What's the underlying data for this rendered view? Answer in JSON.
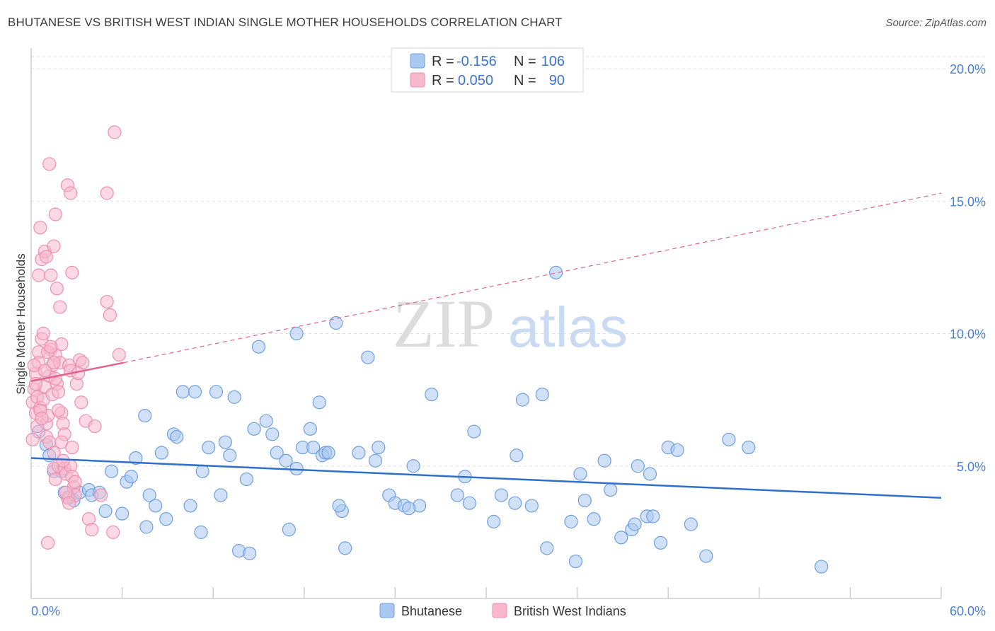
{
  "title": "BHUTANESE VS BRITISH WEST INDIAN SINGLE MOTHER HOUSEHOLDS CORRELATION CHART",
  "source": "Source: ZipAtlas.com",
  "watermark": {
    "zip": "ZIP",
    "atlas": "atlas"
  },
  "legend_top": {
    "rows": [
      {
        "r_label": "R =",
        "r_value": "-0.156",
        "n_label": "N =",
        "n_value": "106"
      },
      {
        "r_label": "R =",
        "r_value": "0.050",
        "n_label": "N =",
        "n_value": "90"
      }
    ]
  },
  "colors": {
    "blue_fill": "#a9c8f0",
    "blue_stroke": "#6f9fe0",
    "blue_line": "#2f6fcc",
    "pink_fill": "#f7b8cc",
    "pink_stroke": "#ee8fae",
    "pink_line": "#e0628e",
    "tick_label": "#4a7fd4",
    "grid": "#dde1e6"
  },
  "chart_data": {
    "type": "scatter",
    "xlabel": "",
    "ylabel": "Single Mother Households",
    "xlim": [
      0,
      60
    ],
    "ylim": [
      0,
      20.6
    ],
    "x_tick_labels": [
      "0.0%",
      "60.0%"
    ],
    "y_ticks": [
      5,
      10,
      15,
      20
    ],
    "y_tick_labels": [
      "5.0%",
      "10.0%",
      "15.0%",
      "20.0%"
    ],
    "grid": "horizontal dashed",
    "legend_position": "top-center",
    "series": [
      {
        "name": "Bhutanese",
        "color": "#a9c8f0",
        "trend": {
          "x": [
            0,
            60
          ],
          "y": [
            5.3,
            3.8
          ],
          "style": "solid"
        },
        "points": [
          [
            0.5,
            6.3
          ],
          [
            1.0,
            5.8
          ],
          [
            1.2,
            5.4
          ],
          [
            1.5,
            4.8
          ],
          [
            2.0,
            4.8
          ],
          [
            2.2,
            4.0
          ],
          [
            2.5,
            3.8
          ],
          [
            2.8,
            3.7
          ],
          [
            3.2,
            4.0
          ],
          [
            3.8,
            4.1
          ],
          [
            4.0,
            3.9
          ],
          [
            4.5,
            4.0
          ],
          [
            4.9,
            3.3
          ],
          [
            5.3,
            4.8
          ],
          [
            6.0,
            3.2
          ],
          [
            6.3,
            4.4
          ],
          [
            6.6,
            4.6
          ],
          [
            6.9,
            5.3
          ],
          [
            7.5,
            6.9
          ],
          [
            7.6,
            2.7
          ],
          [
            7.8,
            3.9
          ],
          [
            8.2,
            3.5
          ],
          [
            8.6,
            5.5
          ],
          [
            8.9,
            3.0
          ],
          [
            9.4,
            6.2
          ],
          [
            9.6,
            6.1
          ],
          [
            10.0,
            7.8
          ],
          [
            10.5,
            3.5
          ],
          [
            10.8,
            7.8
          ],
          [
            11.2,
            2.5
          ],
          [
            11.3,
            4.8
          ],
          [
            11.7,
            5.7
          ],
          [
            12.2,
            7.8
          ],
          [
            12.5,
            3.9
          ],
          [
            12.8,
            5.9
          ],
          [
            13.1,
            5.4
          ],
          [
            13.4,
            7.6
          ],
          [
            13.7,
            1.8
          ],
          [
            14.2,
            4.5
          ],
          [
            14.4,
            1.7
          ],
          [
            14.7,
            6.4
          ],
          [
            15.0,
            9.5
          ],
          [
            15.5,
            6.7
          ],
          [
            15.9,
            6.2
          ],
          [
            16.2,
            5.5
          ],
          [
            16.8,
            5.2
          ],
          [
            17.0,
            2.6
          ],
          [
            17.5,
            4.9
          ],
          [
            17.5,
            10.0
          ],
          [
            17.9,
            5.7
          ],
          [
            18.4,
            6.4
          ],
          [
            18.6,
            5.7
          ],
          [
            19.0,
            7.4
          ],
          [
            19.2,
            5.4
          ],
          [
            19.4,
            5.5
          ],
          [
            19.6,
            5.5
          ],
          [
            20.1,
            10.4
          ],
          [
            20.5,
            3.3
          ],
          [
            20.7,
            1.9
          ],
          [
            21.6,
            5.5
          ],
          [
            22.2,
            9.1
          ],
          [
            22.7,
            5.2
          ],
          [
            22.9,
            5.7
          ],
          [
            23.6,
            3.9
          ],
          [
            24.0,
            3.6
          ],
          [
            24.6,
            3.5
          ],
          [
            25.2,
            5.0
          ],
          [
            25.6,
            3.5
          ],
          [
            26.4,
            7.7
          ],
          [
            28.1,
            3.9
          ],
          [
            28.6,
            4.6
          ],
          [
            28.9,
            3.6
          ],
          [
            29.2,
            6.3
          ],
          [
            30.5,
            2.9
          ],
          [
            31.0,
            3.9
          ],
          [
            32.0,
            5.4
          ],
          [
            32.4,
            7.5
          ],
          [
            33.0,
            3.5
          ],
          [
            33.7,
            7.7
          ],
          [
            34.0,
            1.9
          ],
          [
            34.6,
            12.3
          ],
          [
            35.6,
            2.9
          ],
          [
            35.9,
            1.4
          ],
          [
            36.2,
            4.7
          ],
          [
            36.5,
            3.7
          ],
          [
            37.1,
            3.0
          ],
          [
            37.8,
            5.2
          ],
          [
            38.2,
            4.1
          ],
          [
            38.9,
            2.3
          ],
          [
            39.6,
            2.6
          ],
          [
            40.0,
            5.0
          ],
          [
            40.6,
            3.1
          ],
          [
            40.8,
            4.7
          ],
          [
            41.0,
            3.1
          ],
          [
            41.5,
            2.1
          ],
          [
            42.0,
            5.7
          ],
          [
            42.6,
            5.6
          ],
          [
            43.5,
            2.8
          ],
          [
            44.5,
            1.6
          ],
          [
            46.0,
            6.0
          ],
          [
            47.3,
            5.7
          ],
          [
            52.1,
            1.2
          ],
          [
            39.8,
            2.8
          ],
          [
            31.9,
            3.6
          ],
          [
            20.3,
            3.5
          ],
          [
            24.9,
            3.4
          ]
        ]
      },
      {
        "name": "British West Indians",
        "color": "#f7b8cc",
        "trend": {
          "x": [
            0,
            6.1
          ],
          "y": [
            8.2,
            8.9
          ],
          "style": "solid",
          "extended_to": [
            60,
            15.3
          ],
          "extended_style": "dashed"
        },
        "points": [
          [
            0.1,
            7.4
          ],
          [
            0.2,
            7.9
          ],
          [
            0.3,
            8.5
          ],
          [
            0.3,
            7.0
          ],
          [
            0.4,
            7.6
          ],
          [
            0.5,
            9.3
          ],
          [
            0.5,
            8.9
          ],
          [
            0.6,
            7.2
          ],
          [
            0.7,
            9.8
          ],
          [
            0.8,
            10.0
          ],
          [
            0.8,
            7.5
          ],
          [
            0.9,
            8.0
          ],
          [
            1.0,
            6.6
          ],
          [
            1.0,
            6.1
          ],
          [
            1.1,
            6.9
          ],
          [
            1.2,
            8.4
          ],
          [
            1.2,
            5.9
          ],
          [
            1.3,
            9.4
          ],
          [
            1.4,
            8.8
          ],
          [
            1.4,
            7.7
          ],
          [
            1.5,
            5.5
          ],
          [
            1.5,
            4.9
          ],
          [
            1.6,
            9.2
          ],
          [
            1.6,
            4.5
          ],
          [
            1.7,
            8.1
          ],
          [
            1.8,
            7.8
          ],
          [
            1.8,
            5.0
          ],
          [
            1.9,
            8.9
          ],
          [
            2.0,
            9.6
          ],
          [
            2.0,
            7.0
          ],
          [
            2.1,
            6.6
          ],
          [
            2.2,
            6.2
          ],
          [
            2.2,
            4.9
          ],
          [
            2.3,
            4.7
          ],
          [
            2.4,
            3.8
          ],
          [
            2.5,
            8.8
          ],
          [
            2.6,
            8.6
          ],
          [
            2.6,
            5.0
          ],
          [
            2.7,
            4.6
          ],
          [
            2.8,
            4.2
          ],
          [
            2.9,
            3.9
          ],
          [
            3.0,
            8.1
          ],
          [
            3.2,
            9.0
          ],
          [
            3.4,
            8.9
          ],
          [
            3.6,
            6.7
          ],
          [
            3.8,
            3.0
          ],
          [
            4.0,
            2.6
          ],
          [
            4.2,
            6.5
          ],
          [
            4.6,
            3.9
          ],
          [
            5.0,
            11.2
          ],
          [
            5.2,
            10.7
          ],
          [
            5.4,
            2.5
          ],
          [
            5.8,
            9.2
          ],
          [
            0.5,
            12.2
          ],
          [
            0.6,
            14.0
          ],
          [
            0.7,
            12.8
          ],
          [
            0.9,
            13.1
          ],
          [
            1.0,
            12.9
          ],
          [
            1.2,
            16.4
          ],
          [
            1.3,
            12.2
          ],
          [
            1.5,
            13.3
          ],
          [
            1.6,
            14.5
          ],
          [
            1.7,
            11.7
          ],
          [
            1.9,
            11.0
          ],
          [
            2.4,
            15.6
          ],
          [
            2.6,
            15.3
          ],
          [
            2.7,
            12.3
          ],
          [
            5.0,
            15.3
          ],
          [
            5.5,
            17.6
          ],
          [
            1.1,
            2.1
          ],
          [
            0.2,
            8.8
          ],
          [
            0.3,
            8.1
          ],
          [
            0.4,
            6.5
          ],
          [
            0.6,
            7.1
          ],
          [
            0.7,
            6.8
          ],
          [
            0.9,
            8.6
          ],
          [
            1.1,
            9.3
          ],
          [
            1.3,
            9.5
          ],
          [
            1.5,
            8.9
          ],
          [
            1.6,
            8.3
          ],
          [
            1.8,
            7.1
          ],
          [
            2.0,
            5.9
          ],
          [
            2.1,
            5.2
          ],
          [
            2.3,
            4.0
          ],
          [
            2.5,
            3.6
          ],
          [
            2.7,
            5.7
          ],
          [
            2.9,
            4.4
          ],
          [
            3.1,
            8.5
          ],
          [
            3.3,
            7.4
          ],
          [
            0.1,
            6.0
          ]
        ]
      }
    ]
  },
  "bottom_legend": {
    "items": [
      "Bhutanese",
      "British West Indians"
    ]
  }
}
